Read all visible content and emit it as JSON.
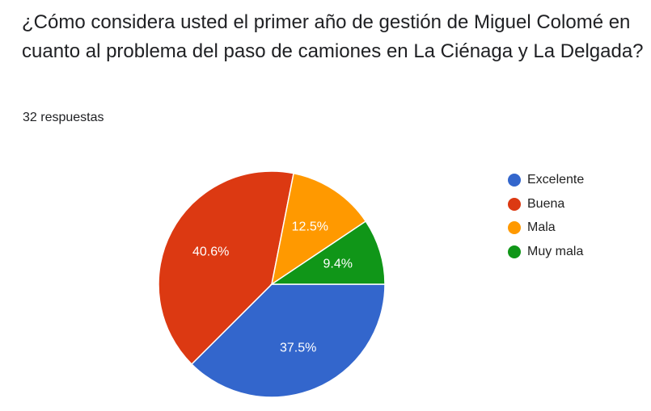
{
  "question": "¿Cómo considera usted el primer año de gestión de Miguel Colomé en cuanto al problema del paso de camiones en La Ciénaga y La Delgada?",
  "responses_label": "32 respuestas",
  "legend": [
    {
      "label": "Excelente",
      "color": "#3366cc"
    },
    {
      "label": "Buena",
      "color": "#dc3912"
    },
    {
      "label": "Mala",
      "color": "#ff9900"
    },
    {
      "label": "Muy mala",
      "color": "#109618"
    }
  ],
  "chart_data": {
    "type": "pie",
    "title": "",
    "total": 32,
    "categories": [
      "Excelente",
      "Buena",
      "Mala",
      "Muy mala"
    ],
    "values": [
      37.5,
      40.6,
      12.5,
      9.4
    ],
    "labels": [
      "37.5%",
      "40.6%",
      "12.5%",
      "9.4%"
    ],
    "colors": [
      "#3366cc",
      "#dc3912",
      "#ff9900",
      "#109618"
    ],
    "legend_position": "right"
  }
}
